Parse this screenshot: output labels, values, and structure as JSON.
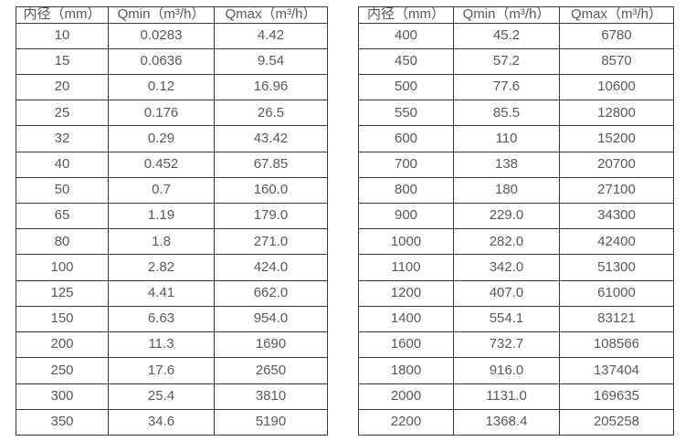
{
  "page": {
    "background": "#ffffff"
  },
  "colors": {
    "border": "#3b3b3b",
    "text": "#595959"
  },
  "tables": [
    {
      "name": "flow-spec-table-small-diameters",
      "headers": [
        "内径（mm）",
        "Qmin（m³/h）",
        "Qmax（m³/h）"
      ],
      "rows": [
        [
          "10",
          "0.0283",
          "4.42"
        ],
        [
          "15",
          "0.0636",
          "9.54"
        ],
        [
          "20",
          "0.12",
          "16.96"
        ],
        [
          "25",
          "0.176",
          "26.5"
        ],
        [
          "32",
          "0.29",
          "43.42"
        ],
        [
          "40",
          "0.452",
          "67.85"
        ],
        [
          "50",
          "0.7",
          "160.0"
        ],
        [
          "65",
          "1.19",
          "179.0"
        ],
        [
          "80",
          "1.8",
          "271.0"
        ],
        [
          "100",
          "2.82",
          "424.0"
        ],
        [
          "125",
          "4.41",
          "662.0"
        ],
        [
          "150",
          "6.63",
          "954.0"
        ],
        [
          "200",
          "11.3",
          "1690"
        ],
        [
          "250",
          "17.6",
          "2650"
        ],
        [
          "300",
          "25.4",
          "3810"
        ],
        [
          "350",
          "34.6",
          "5190"
        ]
      ]
    },
    {
      "name": "flow-spec-table-large-diameters",
      "headers": [
        "内径（mm）",
        "Qmin（m³/h）",
        "Qmax（m³/h）"
      ],
      "rows": [
        [
          "400",
          "45.2",
          "6780"
        ],
        [
          "450",
          "57.2",
          "8570"
        ],
        [
          "500",
          "77.6",
          "10600"
        ],
        [
          "550",
          "85.5",
          "12800"
        ],
        [
          "600",
          "110",
          "15200"
        ],
        [
          "700",
          "138",
          "20700"
        ],
        [
          "800",
          "180",
          "27100"
        ],
        [
          "900",
          "229.0",
          "34300"
        ],
        [
          "1000",
          "282.0",
          "42400"
        ],
        [
          "1100",
          "342.0",
          "51300"
        ],
        [
          "1200",
          "407.0",
          "61000"
        ],
        [
          "1400",
          "554.1",
          "83121"
        ],
        [
          "1600",
          "732.7",
          "108566"
        ],
        [
          "1800",
          "916.0",
          "137404"
        ],
        [
          "2000",
          "1131.0",
          "169635"
        ],
        [
          "2200",
          "1368.4",
          "205258"
        ]
      ]
    }
  ]
}
